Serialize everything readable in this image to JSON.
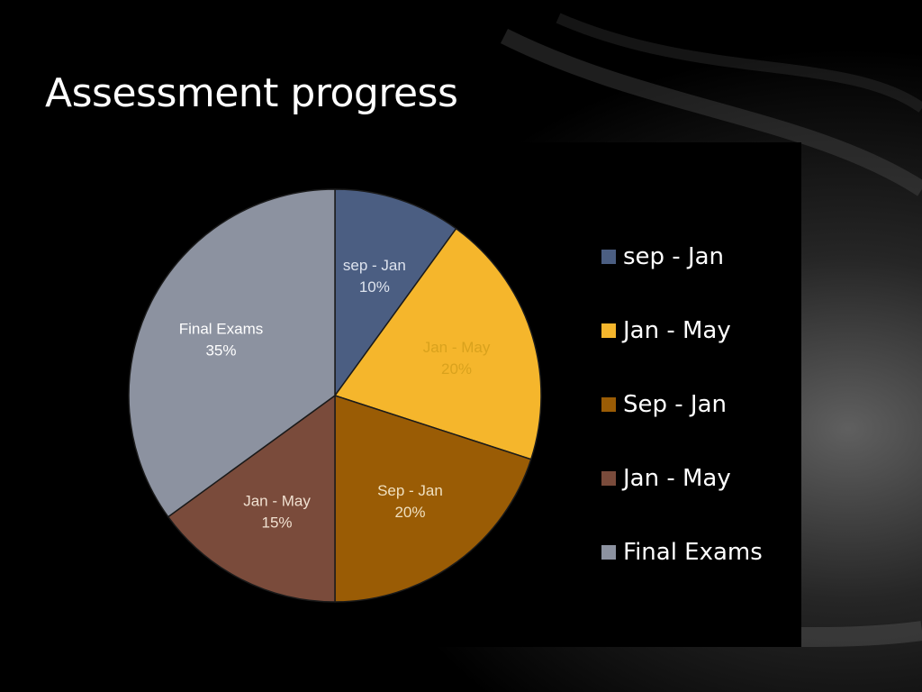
{
  "slide": {
    "title": "Assessment progress"
  },
  "chart_data": {
    "type": "pie",
    "title": "",
    "slices": [
      {
        "label": "sep - Jan",
        "value": 10,
        "display": "10%",
        "color": "#4b5e82"
      },
      {
        "label": "Jan - May",
        "value": 20,
        "display": "20%",
        "color": "#f5b62c"
      },
      {
        "label": "Sep - Jan",
        "value": 20,
        "display": "20%",
        "color": "#9a5c05"
      },
      {
        "label": "Jan - May",
        "value": 15,
        "display": "15%",
        "color": "#7a4b3b"
      },
      {
        "label": "Final Exams",
        "value": 35,
        "display": "35%",
        "color": "#8c92a0"
      }
    ],
    "label_colors": [
      "#dde3ee",
      "#d9a21d",
      "#f0e0c0",
      "#f0e0d0",
      "#ffffff"
    ],
    "legend": {
      "placement": "right",
      "entries": [
        "sep - Jan",
        "Jan - May",
        "Sep - Jan",
        "Jan - May",
        "Final Exams"
      ]
    }
  }
}
